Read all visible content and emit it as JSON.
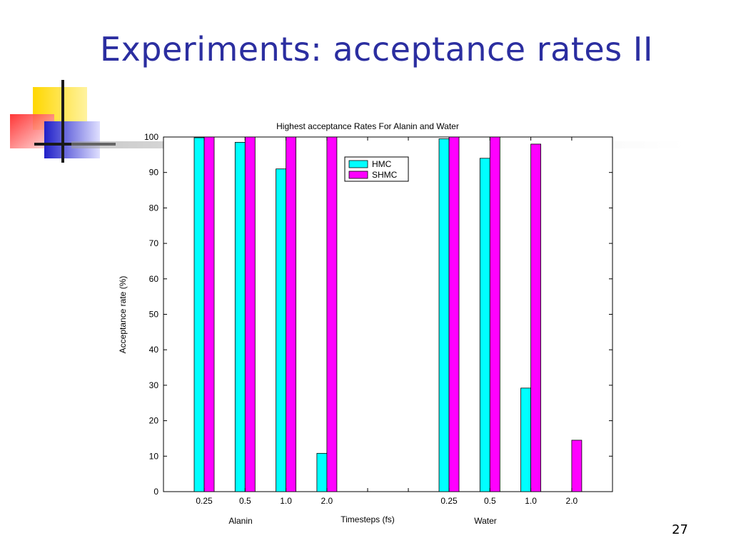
{
  "slide": {
    "title": "Experiments: acceptance rates II",
    "page_number": "27"
  },
  "colors": {
    "title": "#2b2ea0",
    "HMC": "#00ffff",
    "SHMC": "#ff00ff"
  },
  "chart_data": {
    "type": "bar",
    "title": "Highest acceptance Rates For Alanin and Water",
    "xlabel": "Timesteps (fs)",
    "ylabel": "Acceptance rate (%)",
    "ylim": [
      0,
      100
    ],
    "yticks": [
      0,
      10,
      20,
      30,
      40,
      50,
      60,
      70,
      80,
      90,
      100
    ],
    "groups": [
      {
        "name": "Alanin",
        "categories": [
          "0.25",
          "0.5",
          "1.0",
          "2.0"
        ]
      },
      {
        "name": "Water",
        "categories": [
          "0.25",
          "0.5",
          "1.0",
          "2.0"
        ]
      }
    ],
    "series": [
      {
        "name": "HMC",
        "values": [
          99.8,
          98.5,
          91,
          10.8,
          99.5,
          94,
          29.2,
          0
        ]
      },
      {
        "name": "SHMC",
        "values": [
          100,
          100,
          100,
          100,
          100,
          100,
          98,
          14.5
        ]
      }
    ],
    "legend_position": "top-center",
    "grid": false
  }
}
